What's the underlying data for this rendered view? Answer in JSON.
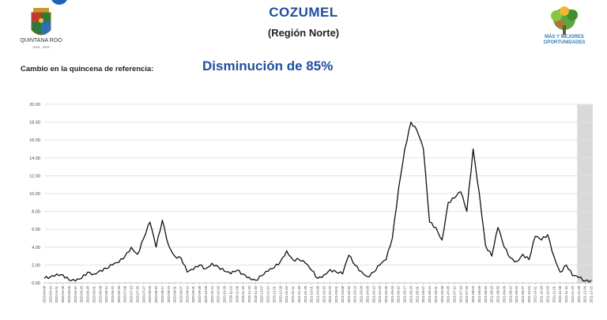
{
  "header": {
    "title": "COZUMEL",
    "subtitle": "(Región Norte)",
    "logo_left_text": "QUINTANA ROO",
    "logo_left_sub": "2016 - 2022",
    "logo_right_text": "MÁS Y MEJORES OPORTUNIDADES"
  },
  "reference": {
    "label": "Cambio en la quincena de referencia:",
    "value": "Disminución de 85%"
  },
  "colors": {
    "title": "#1f4e9e",
    "line": "#111111",
    "highlight": "#d9d9d9"
  },
  "chart_data": {
    "type": "line",
    "title": "",
    "xlabel": "",
    "ylabel": "",
    "ylim": [
      0,
      20
    ],
    "yticks": [
      "0.00",
      "2.00",
      "4.00",
      "6.00",
      "8.00",
      "10.00",
      "12.00",
      "14.00",
      "16.00",
      "18.00",
      "20.00"
    ],
    "grid": true,
    "x_tick_labels": [
      "2020-04-08",
      "2020-04-14",
      "2020-04-21",
      "2020-04-28",
      "2020-05-05",
      "2020-05-10",
      "2020-05-18",
      "2020-05-25",
      "2020-06-01",
      "2020-06-08",
      "2020-06-14",
      "2020-06-22",
      "2020-06-29",
      "2020-07-06",
      "2020-07-13",
      "2020-07-20",
      "2020-07-27",
      "2020-08-03",
      "2020-08-10",
      "2020-08-17",
      "2020-08-24",
      "2020-08-31",
      "2020-09-07",
      "2020-09-14",
      "2020-09-21",
      "2020-09-28",
      "2020-10-05",
      "2020-10-12",
      "2020-10-19",
      "2020-10-26",
      "2020-11-02",
      "2020-11-09",
      "2020-11-16",
      "2020-11-23",
      "2020-11-30",
      "2020-12-07",
      "2020-12-14",
      "2020-12-21",
      "2020-12-28",
      "2021-01-04",
      "2021-01-11",
      "2021-01-18",
      "2021-01-25",
      "2021-02-01",
      "2021-02-08",
      "2021-02-15",
      "2021-02-22",
      "2021-03-01",
      "2021-03-08",
      "2021-03-15",
      "2021-03-22",
      "2021-03-29",
      "2021-04-05",
      "2021-04-12",
      "2021-04-19",
      "2021-04-26",
      "2021-05-03",
      "2021-05-10",
      "2021-05-17",
      "2021-05-24",
      "2021-05-31",
      "2021-06-07",
      "2021-06-14",
      "2021-06-21",
      "2021-06-28",
      "2021-07-05",
      "2021-07-12",
      "2021-07-19",
      "2021-07-26",
      "2021-08-02",
      "2021-08-09",
      "2021-08-16",
      "2021-08-23",
      "2021-08-30",
      "2021-09-06",
      "2021-09-13",
      "2021-09-20",
      "2021-09-27",
      "2021-10-04",
      "2021-10-11",
      "2021-10-18",
      "2021-10-25",
      "2021-11-01",
      "2021-11-08",
      "2021-11-15",
      "2021-11-22",
      "2021-11-29",
      "2021-12-06",
      "2021-12-15"
    ],
    "highlight_from_index": 86,
    "series": [
      {
        "values": [
          0.5,
          0.7,
          1.0,
          0.9,
          0.3,
          0.2,
          0.5,
          1.2,
          1.0,
          1.4,
          1.6,
          2.0,
          2.3,
          3.0,
          4.0,
          3.2,
          5.0,
          6.8,
          4.0,
          7.0,
          4.2,
          3.0,
          2.8,
          1.2,
          1.5,
          2.0,
          1.6,
          2.2,
          1.8,
          1.3,
          1.0,
          1.4,
          1.0,
          0.6,
          0.3,
          0.8,
          1.3,
          1.7,
          2.4,
          3.6,
          2.6,
          2.6,
          2.2,
          1.4,
          0.5,
          0.9,
          1.5,
          1.2,
          1.0,
          3.1,
          2.0,
          1.3,
          0.7,
          1.2,
          2.0,
          2.6,
          5.0,
          10.5,
          15.0,
          18.0,
          17.0,
          15.0,
          6.8,
          6.2,
          4.8,
          9.0,
          9.5,
          10.2,
          8.0,
          15.0,
          10.0,
          4.2,
          3.0,
          6.2,
          4.0,
          2.8,
          2.4,
          3.2,
          2.6,
          5.2,
          4.8,
          5.4,
          3.0,
          1.2,
          2.0,
          0.8,
          0.6,
          0.2,
          0.3
        ]
      }
    ]
  }
}
